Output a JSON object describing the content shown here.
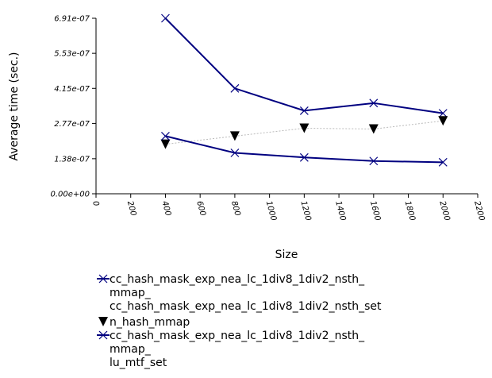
{
  "chart_data": {
    "type": "line",
    "xlabel": "Size",
    "ylabel": "Average time (sec.)",
    "xlim": [
      0,
      2200
    ],
    "ylim": [
      0,
      6.91e-07
    ],
    "x_ticks": [
      0,
      200,
      400,
      600,
      800,
      1000,
      1200,
      1400,
      1600,
      1800,
      2000,
      2200
    ],
    "y_ticks": [
      0,
      1.38e-07,
      2.77e-07,
      4.15e-07,
      5.53e-07,
      6.91e-07
    ],
    "x_tick_labels": [
      "0",
      "200",
      "400",
      "600",
      "800",
      "1000",
      "1200",
      "1400",
      "1600",
      "1800",
      "2000",
      "2200"
    ],
    "y_tick_labels": [
      "0.00e+00",
      "1.38e-07",
      "2.77e-07",
      "4.15e-07",
      "5.53e-07",
      "6.91e-07"
    ],
    "legend_position": "bottom",
    "series": [
      {
        "name_lines": [
          "cc_hash_mask_exp_nea_lc_1div8_1div2_nsth_",
          "mmap_",
          "cc_hash_mask_exp_nea_lc_1div8_1div2_nsth_set"
        ],
        "marker": "x",
        "line": "solid",
        "color": "#000080",
        "x": [
          400,
          800,
          1200,
          1600,
          2000
        ],
        "y": [
          6.91e-07,
          4.15e-07,
          3.27e-07,
          3.57e-07,
          3.17e-07
        ]
      },
      {
        "name_lines": [
          "n_hash_mmap"
        ],
        "marker": "triangle-down",
        "line": "dotted",
        "color": "#000000",
        "line_color": "#bbbbbb",
        "x": [
          400,
          800,
          1200,
          1600,
          2000
        ],
        "y": [
          1.95e-07,
          2.27e-07,
          2.58e-07,
          2.55e-07,
          2.87e-07
        ]
      },
      {
        "name_lines": [
          "cc_hash_mask_exp_nea_lc_1div8_1div2_nsth_",
          "mmap_",
          "lu_mtf_set"
        ],
        "marker": "x",
        "line": "solid",
        "color": "#000080",
        "x": [
          400,
          800,
          1200,
          1600,
          2000
        ],
        "y": [
          2.27e-07,
          1.61e-07,
          1.43e-07,
          1.29e-07,
          1.24e-07
        ]
      }
    ]
  }
}
